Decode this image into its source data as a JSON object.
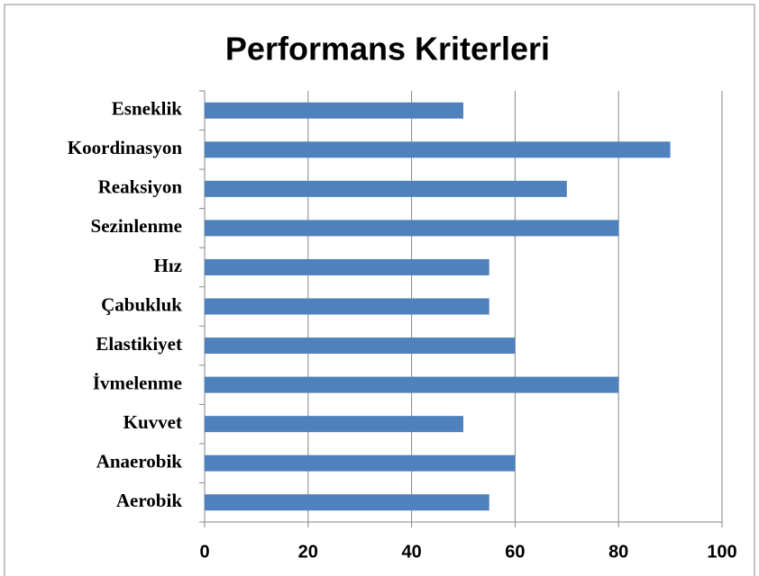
{
  "chart_data": {
    "type": "bar",
    "orientation": "horizontal",
    "title": "Performans Kriterleri",
    "categories": [
      "Esneklik",
      "Koordinasyon",
      "Reaksiyon",
      "Sezinlenme",
      "Hız",
      "Çabukluk",
      "Elastikiyet",
      "İvmelenme",
      "Kuvvet",
      "Anaerobik",
      "Aerobik"
    ],
    "values": [
      50,
      90,
      70,
      80,
      55,
      55,
      60,
      80,
      50,
      60,
      55
    ],
    "color": "#4f81bd",
    "xlim": [
      0,
      100
    ],
    "xticks": [
      0,
      20,
      40,
      60,
      80,
      100
    ],
    "grid": true
  }
}
